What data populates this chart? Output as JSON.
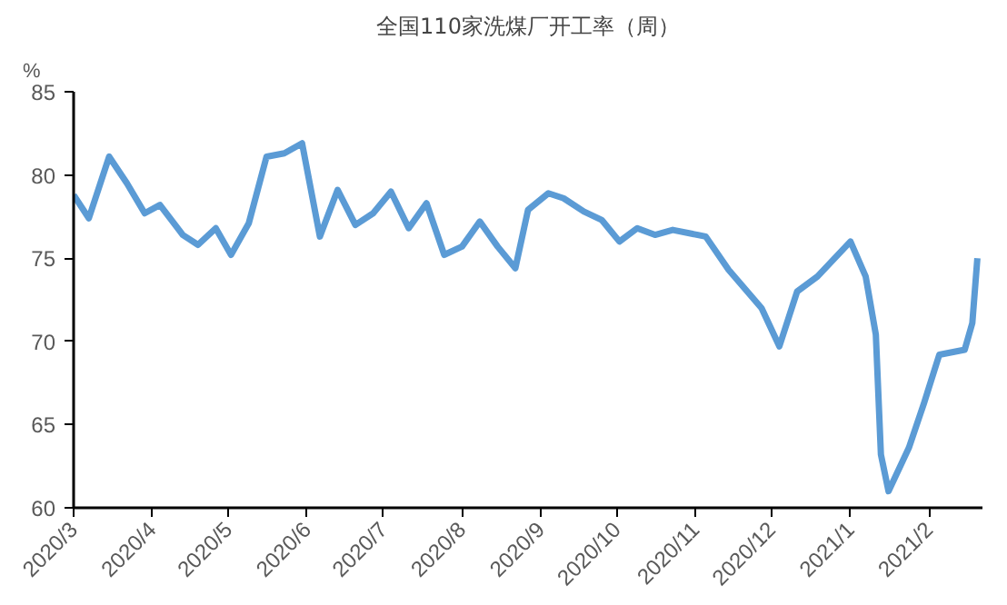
{
  "chart_data": {
    "type": "line",
    "title": "全国110家洗煤厂开工率（周）",
    "ylabel": "%",
    "x": [
      "2020-03-01",
      "2020-03-07",
      "2020-03-15",
      "2020-03-22",
      "2020-03-29",
      "2020-04-04",
      "2020-04-13",
      "2020-04-19",
      "2020-04-26",
      "2020-05-02",
      "2020-05-09",
      "2020-05-16",
      "2020-05-23",
      "2020-05-30",
      "2020-06-06",
      "2020-06-13",
      "2020-06-20",
      "2020-06-27",
      "2020-07-04",
      "2020-07-11",
      "2020-07-18",
      "2020-07-25",
      "2020-08-01",
      "2020-08-08",
      "2020-08-15",
      "2020-08-22",
      "2020-08-27",
      "2020-09-04",
      "2020-09-10",
      "2020-09-18",
      "2020-09-25",
      "2020-10-02",
      "2020-10-09",
      "2020-10-16",
      "2020-10-23",
      "2020-11-05",
      "2020-11-14",
      "2020-11-27",
      "2020-12-04",
      "2020-12-11",
      "2020-12-19",
      "2021-01-01",
      "2021-01-07",
      "2021-01-11",
      "2021-01-13",
      "2021-01-16",
      "2021-01-24",
      "2021-01-30",
      "2021-02-05",
      "2021-02-15",
      "2021-02-18",
      "2021-02-20"
    ],
    "series": [
      {
        "color": "#5b9bd5",
        "values": [
          78.8,
          77.4,
          81.1,
          79.5,
          77.7,
          78.2,
          76.4,
          75.8,
          76.8,
          75.2,
          77.1,
          81.1,
          81.3,
          81.9,
          76.3,
          79.1,
          77.0,
          77.7,
          79.0,
          76.8,
          78.3,
          75.2,
          75.7,
          77.2,
          75.7,
          74.4,
          77.9,
          78.9,
          78.6,
          77.8,
          77.3,
          76.0,
          76.8,
          76.4,
          76.7,
          76.3,
          74.3,
          72.0,
          69.7,
          73.0,
          73.9,
          76.0,
          73.9,
          70.4,
          63.2,
          61.0,
          63.6,
          66.3,
          69.2,
          69.5,
          71.1,
          75.0
        ]
      }
    ],
    "xlim": [
      "2020-03-01",
      "2021-02-22"
    ],
    "xticks": [
      {
        "value": "2020-03-01",
        "label": "2020/3"
      },
      {
        "value": "2020-04-01",
        "label": "2020/4"
      },
      {
        "value": "2020-05-01",
        "label": "2020/5"
      },
      {
        "value": "2020-06-01",
        "label": "2020/6"
      },
      {
        "value": "2020-07-01",
        "label": "2020/7"
      },
      {
        "value": "2020-08-01",
        "label": "2020/8"
      },
      {
        "value": "2020-09-01",
        "label": "2020/9"
      },
      {
        "value": "2020-10-01",
        "label": "2020/10"
      },
      {
        "value": "2020-11-01",
        "label": "2020/11"
      },
      {
        "value": "2020-12-01",
        "label": "2020/12"
      },
      {
        "value": "2021-01-01",
        "label": "2021/1"
      },
      {
        "value": "2021-02-01",
        "label": "2021/2"
      }
    ],
    "ylim": [
      60,
      85
    ],
    "yticks": [
      60,
      65,
      70,
      75,
      80,
      85
    ],
    "grid": false,
    "marker": "none",
    "line_style": "solid"
  }
}
